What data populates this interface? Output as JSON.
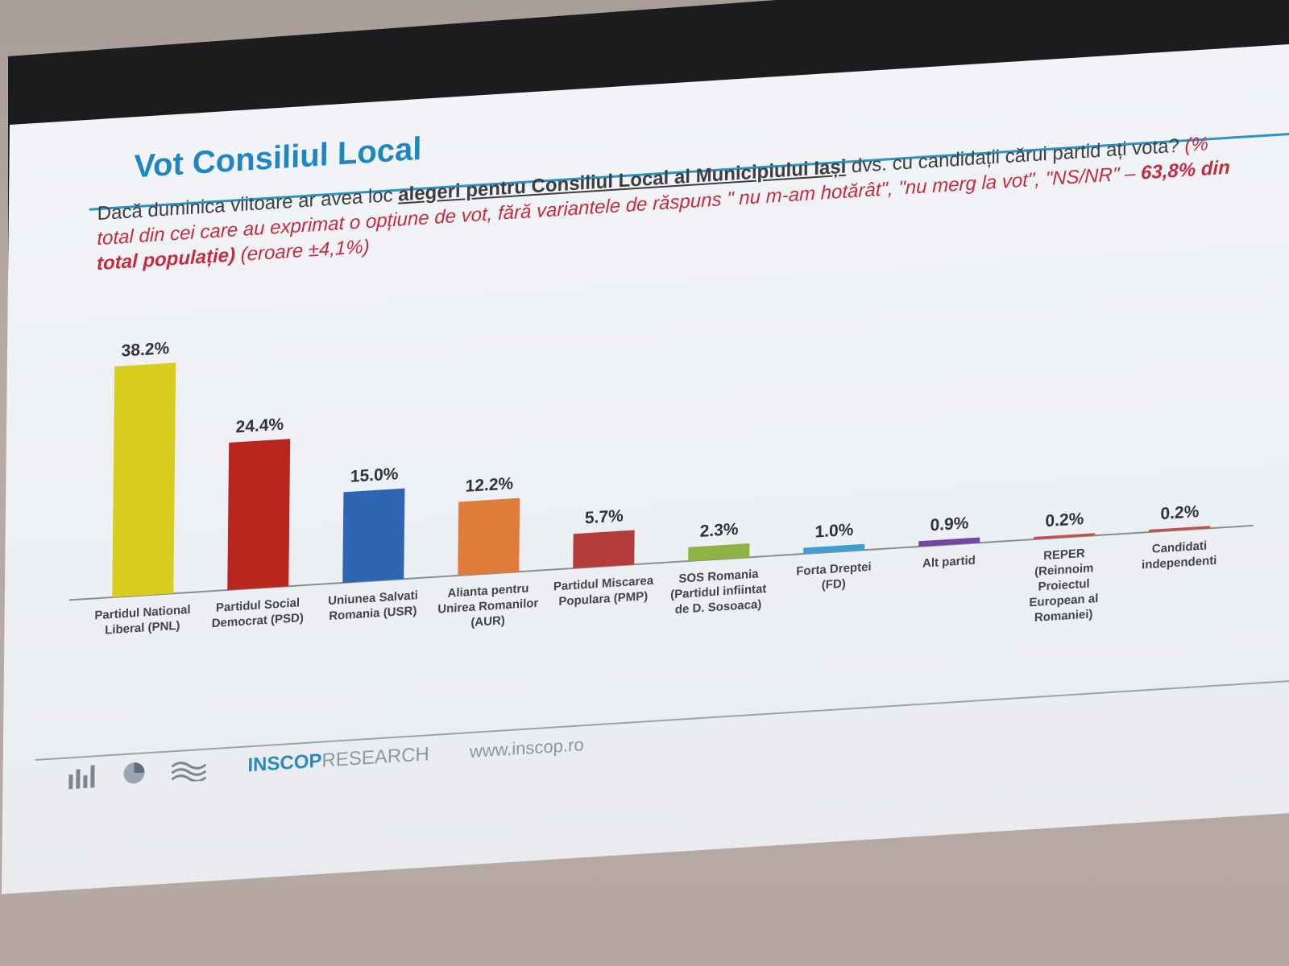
{
  "slide": {
    "title": "Vot Consiliul Local",
    "question_part1": "Dacă duminica viitoare ar avea loc ",
    "question_bold": "alegeri pentru Consiliul Local al Municipiului Iași",
    "question_part2": " dvs. cu candidații cărui partid ați vota? ",
    "note_part1": "(% total din cei care au exprimat o opțiune de vot, fără variantele de răspuns \" nu m-am hotărât\", \"nu merg la vot\", \"NS/NR\" – ",
    "note_bold": "63,8% din total populație)",
    "note_part2": " (eroare ±4,1%)"
  },
  "chart_data": {
    "type": "bar",
    "categories": [
      [
        "Partidul National",
        "Liberal (PNL)"
      ],
      [
        "Partidul Social",
        "Democrat (PSD)"
      ],
      [
        "Uniunea Salvati",
        "Romania (USR)"
      ],
      [
        "Alianta pentru",
        "Unirea Romanilor",
        "(AUR)"
      ],
      [
        "Partidul Miscarea",
        "Populara (PMP)"
      ],
      [
        "SOS Romania",
        "(Partidul infiintat",
        "de D. Sosoaca)"
      ],
      [
        "Forta Dreptei",
        "(FD)"
      ],
      [
        "Alt partid"
      ],
      [
        "REPER",
        "(Reinnoim",
        "Proiectul",
        "European al",
        "Romaniei)"
      ],
      [
        "Candidati",
        "independenti"
      ]
    ],
    "values": [
      38.2,
      24.4,
      15.0,
      12.2,
      5.7,
      2.3,
      1.0,
      0.9,
      0.2,
      0.2
    ],
    "value_labels": [
      "38.2%",
      "24.4%",
      "15.0%",
      "12.2%",
      "5.7%",
      "2.3%",
      "1.0%",
      "0.9%",
      "0.2%",
      "0.2%"
    ],
    "colors": [
      "#d8cc1e",
      "#b9261e",
      "#2f66b3",
      "#e07b3c",
      "#b53a3a",
      "#8eb243",
      "#3fa0d0",
      "#7546a0",
      "#c2504a",
      "#c2504a"
    ],
    "ylim": [
      0,
      40
    ],
    "grid": false
  },
  "footer": {
    "brand": "INSCOP",
    "brand_suffix": "RESEARCH",
    "url": "www.inscop.ro"
  }
}
